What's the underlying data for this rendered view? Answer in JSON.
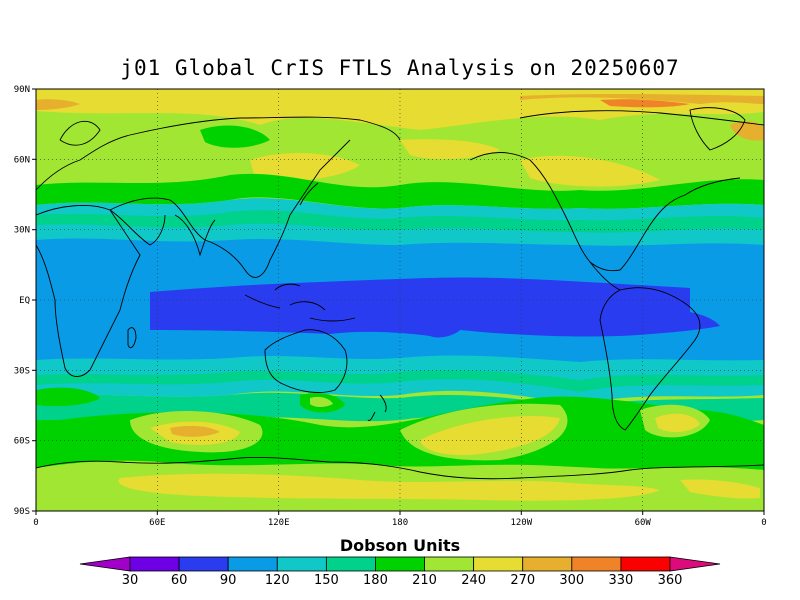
{
  "title": "j01 Global CrIS FTLS Analysis on 20250607",
  "map": {
    "type": "filled-contour",
    "projection": "cylindrical-equidistant",
    "lon_range": [
      0,
      360
    ],
    "lat_range": [
      -90,
      90
    ],
    "gridlines": "dotted",
    "lat_labels": [
      "90N",
      "60N",
      "30N",
      "EQ",
      "30S",
      "60S",
      "90S"
    ],
    "lon_labels": [
      "0",
      "60E",
      "120E",
      "180",
      "120W",
      "60W",
      "0"
    ],
    "field_description_zones": [
      {
        "zone": "tropical band 15S-15N",
        "value_range": [
          60,
          90
        ]
      },
      {
        "zone": "subtropics",
        "value_range": [
          90,
          150
        ]
      },
      {
        "zone": "mid-latitudes",
        "value_range": [
          180,
          240
        ]
      },
      {
        "zone": "high latitudes",
        "value_range": [
          240,
          300
        ]
      }
    ]
  },
  "colorbar": {
    "title": "Dobson Units",
    "ticks": [
      "30",
      "60",
      "90",
      "120",
      "150",
      "180",
      "210",
      "240",
      "270",
      "300",
      "330",
      "360"
    ],
    "colors": [
      "#a000c8",
      "#6e00e6",
      "#2a3cf0",
      "#0a9be6",
      "#10c8c8",
      "#00d28c",
      "#00d200",
      "#a0e632",
      "#e6dc32",
      "#e6af2d",
      "#f08228",
      "#fa0000",
      "#dc0a7a"
    ]
  }
}
